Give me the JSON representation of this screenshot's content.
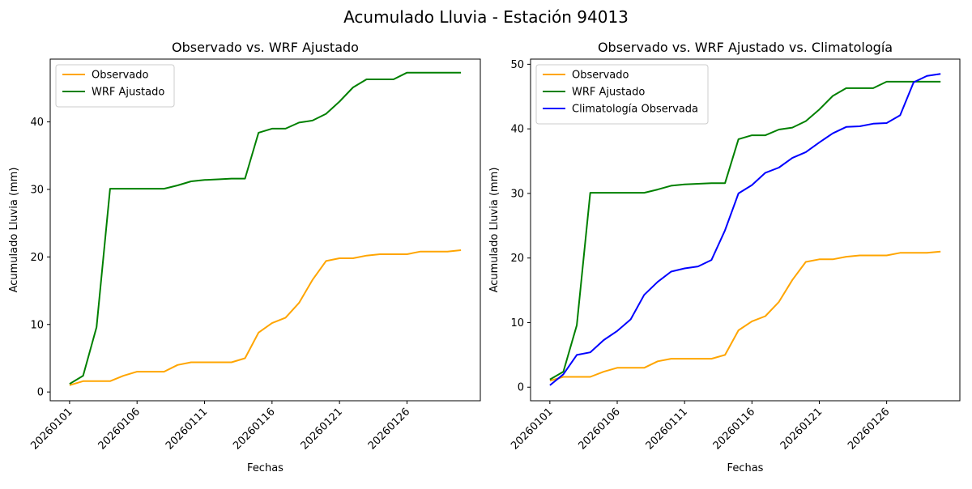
{
  "suptitle": "Acumulado Lluvia - Estación 94013",
  "colors": {
    "observado": "#ffa500",
    "wrf": "#008000",
    "clima": "#0000ff"
  },
  "chart_data": [
    {
      "type": "line",
      "title": "Observado vs. WRF Ajustado",
      "xlabel": "Fechas",
      "ylabel": "Acumulado Lluvia (mm)",
      "x_range": [
        1,
        30
      ],
      "ylim": [
        -1.3,
        49.3
      ],
      "yticks": [
        0,
        10,
        20,
        30,
        40
      ],
      "xticks": [
        {
          "x": 1,
          "label": "20260101"
        },
        {
          "x": 6,
          "label": "20260106"
        },
        {
          "x": 11,
          "label": "20260111"
        },
        {
          "x": 16,
          "label": "20260116"
        },
        {
          "x": 21,
          "label": "20260121"
        },
        {
          "x": 26,
          "label": "20260126"
        }
      ],
      "legend": "upper-left",
      "series": [
        {
          "name": "Observado",
          "color_key": "observado",
          "values": [
            1.0,
            1.6,
            1.6,
            1.6,
            2.4,
            3.0,
            3.0,
            3.0,
            4.0,
            4.4,
            4.4,
            4.4,
            4.4,
            5.0,
            8.8,
            10.2,
            11.0,
            13.2,
            16.6,
            19.4,
            19.8,
            19.8,
            20.2,
            20.4,
            20.4,
            20.4,
            20.8,
            20.8,
            20.8,
            21.0
          ]
        },
        {
          "name": "WRF Ajustado",
          "color_key": "wrf",
          "values": [
            1.2,
            2.4,
            9.6,
            30.1,
            30.1,
            30.1,
            30.1,
            30.1,
            30.6,
            31.2,
            31.4,
            31.5,
            31.6,
            31.6,
            38.4,
            39.0,
            39.0,
            39.9,
            40.2,
            41.2,
            43.0,
            45.1,
            46.3,
            46.3,
            46.3,
            47.3,
            47.3,
            47.3,
            47.3,
            47.3
          ]
        }
      ]
    },
    {
      "type": "line",
      "title": "Observado vs. WRF Ajustado vs. Climatología",
      "xlabel": "Fechas",
      "ylabel": "Acumulado Lluvia (mm)",
      "x_range": [
        1,
        30
      ],
      "ylim": [
        -2.1,
        50.8
      ],
      "yticks": [
        0,
        10,
        20,
        30,
        40,
        50
      ],
      "xticks": [
        {
          "x": 1,
          "label": "20260101"
        },
        {
          "x": 6,
          "label": "20260106"
        },
        {
          "x": 11,
          "label": "20260111"
        },
        {
          "x": 16,
          "label": "20260116"
        },
        {
          "x": 21,
          "label": "20260121"
        },
        {
          "x": 26,
          "label": "20260126"
        }
      ],
      "legend": "upper-left",
      "series": [
        {
          "name": "Observado",
          "color_key": "observado",
          "values": [
            1.0,
            1.6,
            1.6,
            1.6,
            2.4,
            3.0,
            3.0,
            3.0,
            4.0,
            4.4,
            4.4,
            4.4,
            4.4,
            5.0,
            8.8,
            10.2,
            11.0,
            13.2,
            16.6,
            19.4,
            19.8,
            19.8,
            20.2,
            20.4,
            20.4,
            20.4,
            20.8,
            20.8,
            20.8,
            21.0
          ]
        },
        {
          "name": "WRF Ajustado",
          "color_key": "wrf",
          "values": [
            1.2,
            2.4,
            9.6,
            30.1,
            30.1,
            30.1,
            30.1,
            30.1,
            30.6,
            31.2,
            31.4,
            31.5,
            31.6,
            31.6,
            38.4,
            39.0,
            39.0,
            39.9,
            40.2,
            41.2,
            43.0,
            45.1,
            46.3,
            46.3,
            46.3,
            47.3,
            47.3,
            47.3,
            47.3,
            47.3
          ]
        },
        {
          "name": "Climatología Observada",
          "color_key": "clima",
          "values": [
            0.3,
            2.0,
            5.0,
            5.4,
            7.3,
            8.7,
            10.5,
            14.3,
            16.3,
            17.9,
            18.4,
            18.7,
            19.7,
            24.3,
            30.0,
            31.3,
            33.2,
            34.0,
            35.5,
            36.4,
            37.9,
            39.3,
            40.3,
            40.4,
            40.8,
            40.9,
            42.1,
            47.2,
            48.2,
            48.5
          ]
        }
      ]
    }
  ]
}
